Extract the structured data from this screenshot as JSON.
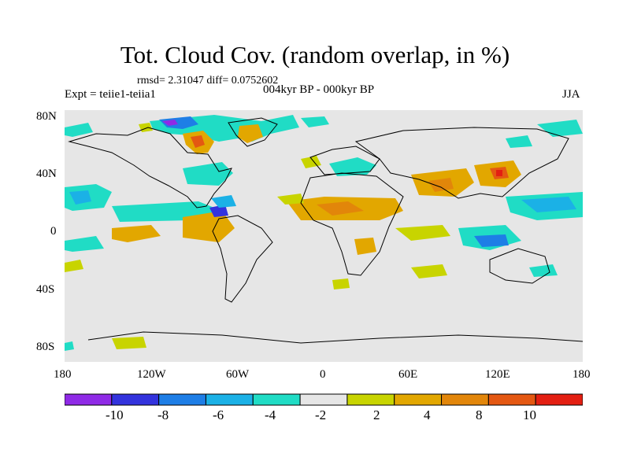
{
  "title": "Tot. Cloud Cov. (random overlap, in %)",
  "stats": "rmsd= 2.31047 diff= 0.0752602",
  "experiment": "Expt = teiie1-teiia1",
  "period": "004kyr BP - 000kyr BP",
  "season": "JJA",
  "axes": {
    "y_ticks": [
      "80N",
      "40N",
      "0",
      "40S",
      "80S"
    ],
    "x_ticks": [
      "180",
      "120W",
      "60W",
      "0",
      "60E",
      "120E",
      "180"
    ]
  },
  "colorbar": {
    "colors": [
      "#8f2ae6",
      "#3333dd",
      "#1e7ee6",
      "#1bb1e6",
      "#20dcc5",
      "#e6e6e6",
      "#c8d400",
      "#e2a700",
      "#e2860a",
      "#e45812",
      "#e31f12"
    ],
    "labels": [
      "-10",
      "-8",
      "-6",
      "-4",
      "-2",
      "2",
      "4",
      "8",
      "10"
    ]
  },
  "map_colors": {
    "ocean_bg": "#e6e6e6",
    "coast": "#000000"
  }
}
